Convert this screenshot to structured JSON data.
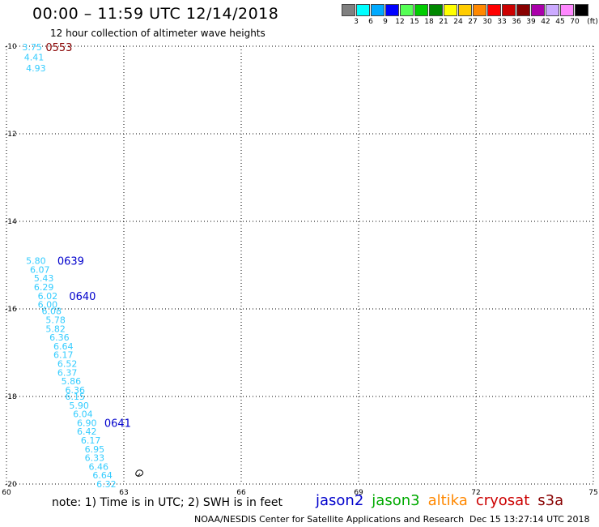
{
  "title": "00:00 – 11:59 UTC 12/14/2018",
  "subtitle": "12 hour collection of altimeter wave heights",
  "legend": {
    "unit_label": "(ft)",
    "bins": [
      {
        "label": "3",
        "color": "#808080"
      },
      {
        "label": "6",
        "color": "#00ffff"
      },
      {
        "label": "9",
        "color": "#00aaff"
      },
      {
        "label": "12",
        "color": "#0000ff"
      },
      {
        "label": "15",
        "color": "#55ff55"
      },
      {
        "label": "18",
        "color": "#00cc00"
      },
      {
        "label": "21",
        "color": "#008800"
      },
      {
        "label": "24",
        "color": "#ffff00"
      },
      {
        "label": "27",
        "color": "#ffcc00"
      },
      {
        "label": "30",
        "color": "#ff8800"
      },
      {
        "label": "33",
        "color": "#ff0000"
      },
      {
        "label": "36",
        "color": "#cc0000"
      },
      {
        "label": "39",
        "color": "#880000"
      },
      {
        "label": "42",
        "color": "#aa00aa"
      },
      {
        "label": "45",
        "color": "#ccaaff"
      },
      {
        "label": "70",
        "color": "#ff88ff"
      },
      {
        "label": "",
        "color": "#000000"
      }
    ]
  },
  "note": "note: 1) Time is in UTC; 2) SWH is in feet",
  "satellites": [
    {
      "name": "jason2",
      "color": "#0000cc"
    },
    {
      "name": "jason3",
      "color": "#00aa00"
    },
    {
      "name": "altika",
      "color": "#ff8800"
    },
    {
      "name": "cryosat",
      "color": "#cc0000"
    },
    {
      "name": "s3a",
      "color": "#880000"
    }
  ],
  "credit": "NOAA/NESDIS Center for Satellite Applications and Research",
  "timestamp": "Dec 15 13:27:14 UTC 2018",
  "chart_data": {
    "type": "scatter",
    "xlim": [
      60,
      75
    ],
    "ylim": [
      -20,
      -10
    ],
    "xticks": [
      "60",
      "63",
      "66",
      "69",
      "72",
      "75"
    ],
    "yticks": [
      "-10",
      "-12",
      "-14",
      "-16",
      "-18",
      "-20"
    ],
    "grid": true,
    "wave_color": "#33ccff",
    "wave_heights": [
      {
        "x": 60.4,
        "y": -10.02,
        "v": "3.75"
      },
      {
        "x": 60.45,
        "y": -10.25,
        "v": "4.41"
      },
      {
        "x": 60.5,
        "y": -10.5,
        "v": "4.93"
      },
      {
        "x": 60.5,
        "y": -14.9,
        "v": "5.80"
      },
      {
        "x": 60.6,
        "y": -15.1,
        "v": "6.07"
      },
      {
        "x": 60.7,
        "y": -15.3,
        "v": "5.43"
      },
      {
        "x": 60.7,
        "y": -15.5,
        "v": "6.29"
      },
      {
        "x": 60.8,
        "y": -15.7,
        "v": "6.02"
      },
      {
        "x": 60.8,
        "y": -15.9,
        "v": "6.00"
      },
      {
        "x": 60.9,
        "y": -16.05,
        "v": "6.08"
      },
      {
        "x": 61.0,
        "y": -16.25,
        "v": "5.78"
      },
      {
        "x": 61.0,
        "y": -16.45,
        "v": "5.82"
      },
      {
        "x": 61.1,
        "y": -16.65,
        "v": "6.36"
      },
      {
        "x": 61.2,
        "y": -16.85,
        "v": "6.64"
      },
      {
        "x": 61.2,
        "y": -17.05,
        "v": "6.17"
      },
      {
        "x": 61.3,
        "y": -17.25,
        "v": "6.52"
      },
      {
        "x": 61.3,
        "y": -17.45,
        "v": "6.37"
      },
      {
        "x": 61.4,
        "y": -17.65,
        "v": "5.86"
      },
      {
        "x": 61.5,
        "y": -17.85,
        "v": "6.36"
      },
      {
        "x": 61.5,
        "y": -18.0,
        "v": "6.15"
      },
      {
        "x": 61.6,
        "y": -18.2,
        "v": "5.90"
      },
      {
        "x": 61.7,
        "y": -18.4,
        "v": "6.04"
      },
      {
        "x": 61.8,
        "y": -18.6,
        "v": "6.90"
      },
      {
        "x": 61.8,
        "y": -18.8,
        "v": "6.42"
      },
      {
        "x": 61.9,
        "y": -19.0,
        "v": "6.17"
      },
      {
        "x": 62.0,
        "y": -19.2,
        "v": "6.95"
      },
      {
        "x": 62.0,
        "y": -19.4,
        "v": "6.33"
      },
      {
        "x": 62.1,
        "y": -19.6,
        "v": "6.46"
      },
      {
        "x": 62.2,
        "y": -19.8,
        "v": "6.64"
      },
      {
        "x": 62.3,
        "y": -20.0,
        "v": "6.32"
      }
    ],
    "pass_labels": [
      {
        "x": 61.0,
        "y": -10.02,
        "label": "0553",
        "color": "#880000"
      },
      {
        "x": 61.3,
        "y": -14.9,
        "label": "0639",
        "color": "#0000cc"
      },
      {
        "x": 61.6,
        "y": -15.7,
        "label": "0640",
        "color": "#0000cc"
      },
      {
        "x": 62.5,
        "y": -18.6,
        "label": "0641",
        "color": "#0000cc"
      }
    ]
  }
}
